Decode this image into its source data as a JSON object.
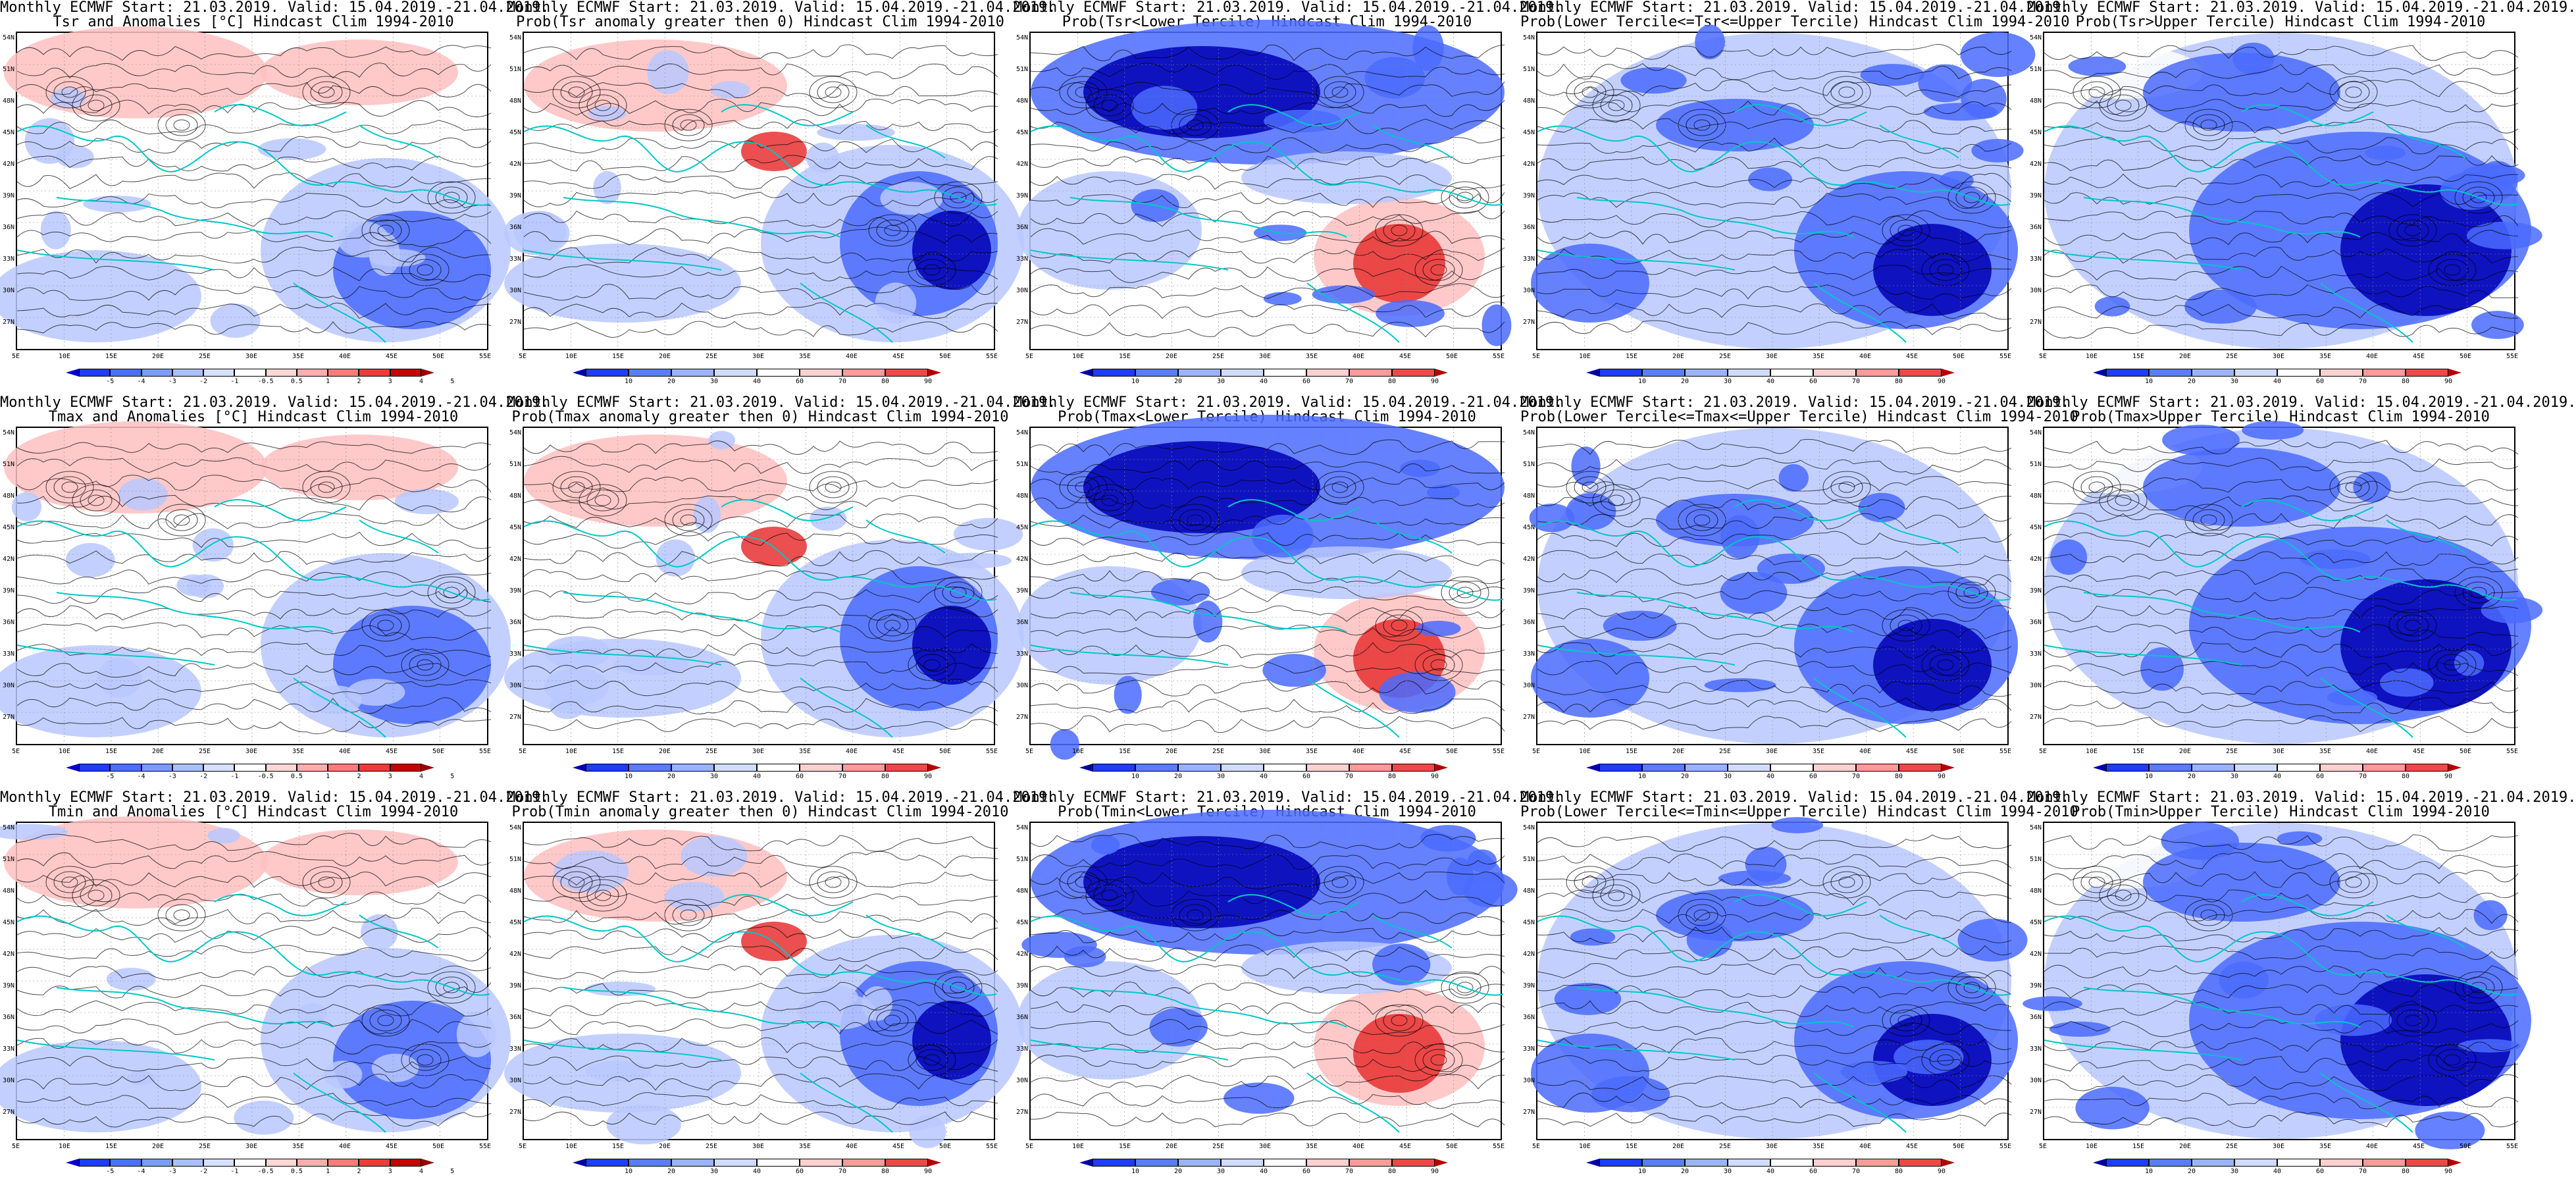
{
  "rows": [
    {
      "variable": "Tsr",
      "panels": [
        {
          "kind": "anom",
          "title1": "Monthly ECMWF Start: 21.03.2019. Valid: 15.04.2019.-21.04.2019.",
          "title2": "Tsr and Anomalies [°C] Hindcast Clim 1994-2010"
        },
        {
          "kind": "prob0",
          "title1": "Monthly ECMWF Start: 21.03.2019. Valid: 15.04.2019.-21.04.2019.",
          "title2": "Prob(Tsr anomaly greater then 0) Hindcast Clim 1994-2010"
        },
        {
          "kind": "lower",
          "title1": "Monthly ECMWF Start: 21.03.2019. Valid: 15.04.2019.-21.04.2019.",
          "title2": "Prob(Tsr<Lower Tercile) Hindcast Clim 1994-2010"
        },
        {
          "kind": "middle",
          "title1": "Monthly ECMWF Start: 21.03.2019. Valid: 15.04.2019.-21.04.2019.",
          "title2": "Prob(Lower Tercile<=Tsr<=Upper Tercile) Hindcast Clim 1994-2010"
        },
        {
          "kind": "upper",
          "title1": "Monthly ECMWF Start: 21.03.2019. Valid: 15.04.2019.-21.04.2019.",
          "title2": "Prob(Tsr>Upper Tercile) Hindcast Clim 1994-2010"
        }
      ]
    },
    {
      "variable": "Tmax",
      "panels": [
        {
          "kind": "anom",
          "title1": "Monthly ECMWF Start: 21.03.2019. Valid: 15.04.2019.-21.04.2019.",
          "title2": "Tmax and Anomalies [°C] Hindcast Clim 1994-2010"
        },
        {
          "kind": "prob0",
          "title1": "Monthly ECMWF Start: 21.03.2019. Valid: 15.04.2019.-21.04.2019.",
          "title2": "Prob(Tmax anomaly greater then 0) Hindcast Clim 1994-2010"
        },
        {
          "kind": "lower",
          "title1": "Monthly ECMWF Start: 21.03.2019. Valid: 15.04.2019.-21.04.2019.",
          "title2": "Prob(Tmax<Lower Tercile) Hindcast Clim 1994-2010"
        },
        {
          "kind": "middle",
          "title1": "Monthly ECMWF Start: 21.03.2019. Valid: 15.04.2019.-21.04.2019.",
          "title2": "Prob(Lower Tercile<=Tmax<=Upper Tercile) Hindcast Clim 1994-2010"
        },
        {
          "kind": "upper",
          "title1": "Monthly ECMWF Start: 21.03.2019. Valid: 15.04.2019.-21.04.2019.",
          "title2": "Prob(Tmax>Upper Tercile) Hindcast Clim 1994-2010"
        }
      ]
    },
    {
      "variable": "Tmin",
      "panels": [
        {
          "kind": "anom",
          "title1": "Monthly ECMWF Start: 21.03.2019. Valid: 15.04.2019.-21.04.2019.",
          "title2": "Tmin and Anomalies [°C] Hindcast Clim 1994-2010"
        },
        {
          "kind": "prob0",
          "title1": "Monthly ECMWF Start: 21.03.2019. Valid: 15.04.2019.-21.04.2019.",
          "title2": "Prob(Tmin anomaly greater then 0) Hindcast Clim 1994-2010"
        },
        {
          "kind": "lower",
          "title1": "Monthly ECMWF Start: 21.03.2019. Valid: 15.04.2019.-21.04.2019.",
          "title2": "Prob(Tmin<Lower Tercile) Hindcast Clim 1994-2010"
        },
        {
          "kind": "middle",
          "title1": "Monthly ECMWF Start: 21.03.2019. Valid: 15.04.2019.-21.04.2019.",
          "title2": "Prob(Lower Tercile<=Tmin<=Upper Tercile) Hindcast Clim 1994-2010"
        },
        {
          "kind": "upper",
          "title1": "Monthly ECMWF Start: 21.03.2019. Valid: 15.04.2019.-21.04.2019.",
          "title2": "Prob(Tmin>Upper Tercile) Hindcast Clim 1994-2010"
        }
      ]
    }
  ],
  "axes": {
    "lat_labels": [
      "54N",
      "51N",
      "48N",
      "45N",
      "42N",
      "39N",
      "36N",
      "33N",
      "30N",
      "27N"
    ],
    "lon_labels": [
      "5E",
      "10E",
      "15E",
      "20E",
      "25E",
      "30E",
      "35E",
      "40E",
      "45E",
      "50E",
      "55E"
    ]
  },
  "colorbars": {
    "anom": {
      "labels": [
        "-5",
        "-4",
        "-3",
        "-2",
        "-1",
        "-0.5",
        "0.5",
        "1",
        "2",
        "3",
        "4",
        "5"
      ],
      "colors": [
        "#0000cc",
        "#1f3cff",
        "#4a70ff",
        "#7a9bff",
        "#a9c0ff",
        "#d6e0ff",
        "#ffffff",
        "#ffd6d6",
        "#ffadad",
        "#ff7a7a",
        "#f03a3a",
        "#c80000",
        "#9a0000"
      ]
    },
    "prob": {
      "labels": [
        "10",
        "20",
        "30",
        "40",
        "60",
        "70",
        "80",
        "90"
      ],
      "colors": [
        "#0000a8",
        "#1f3cff",
        "#5a7dff",
        "#9bb3ff",
        "#d0dcff",
        "#ffffff",
        "#ffd0d0",
        "#ff9a9a",
        "#f04848",
        "#b40000"
      ]
    }
  },
  "map_colors": {
    "sea_outline": "#00c8c8",
    "contours": "#000000",
    "deep_blue": "#0000b4",
    "mid_blue": "#4a6bff",
    "light_blue": "#b8c8ff",
    "light_red": "#ffc0c0",
    "red": "#e83030"
  }
}
